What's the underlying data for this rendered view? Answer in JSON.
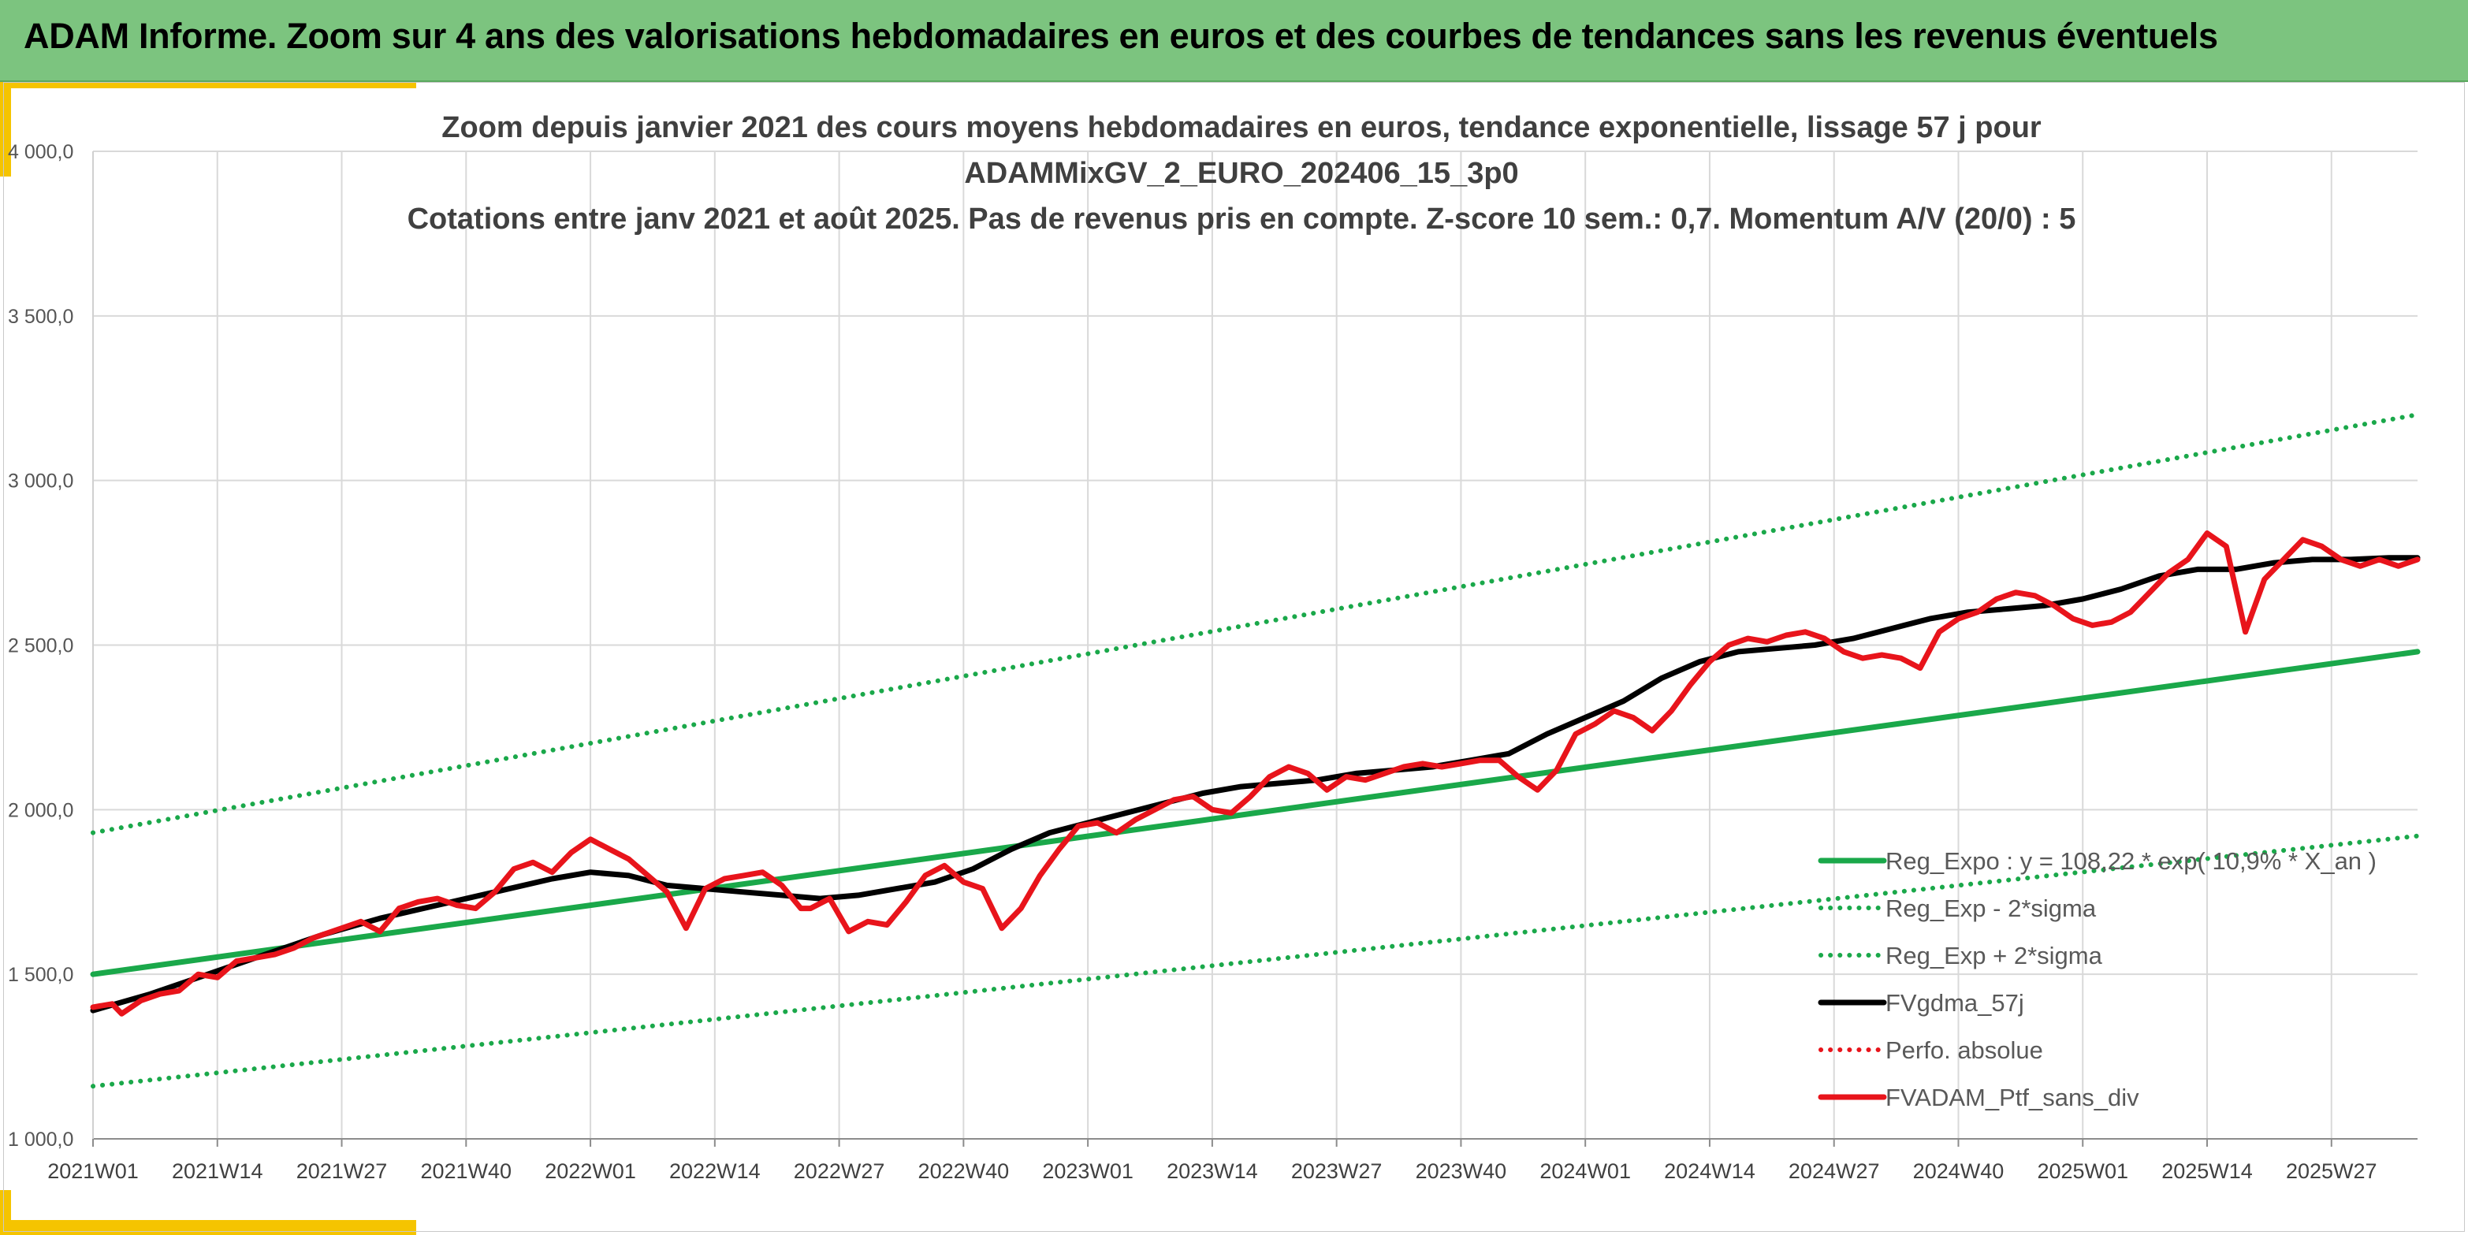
{
  "banner": {
    "title": "ADAM Informe. Zoom sur 4 ans des valorisations hebdomadaires en euros et des courbes de tendances sans les revenus éventuels"
  },
  "colors": {
    "banner_bg": "#7cc47f",
    "trend_green": "#1aa84a",
    "sigma_green": "#1aa84a",
    "gdma_black": "#000000",
    "ptf_red": "#e8141b",
    "accent_yellow": "#f5c400"
  },
  "chart_data": {
    "type": "line",
    "title_lines": [
      "Zoom depuis janvier 2021 des cours moyens hebdomadaires en euros, tendance exponentielle, lissage 57 j pour",
      "ADAMMixGV_2_EURO_202406_15_3p0",
      "Cotations entre janv 2021 et août 2025. Pas de revenus pris en compte. Z-score 10 sem.: 0,7. Momentum A/V (20/0) : 5"
    ],
    "ylim": [
      1000,
      4000
    ],
    "yticks": [
      "1 000,0",
      "1 500,0",
      "2 000,0",
      "2 500,0",
      "3 000,0",
      "3 500,0",
      "4 000,0"
    ],
    "ytick_values": [
      1000,
      1500,
      2000,
      2500,
      3000,
      3500,
      4000
    ],
    "xlim": [
      0,
      243
    ],
    "xtick_labels": [
      "2021W01",
      "2021W14",
      "2021W27",
      "2021W40",
      "2022W01",
      "2022W14",
      "2022W27",
      "2022W40",
      "2023W01",
      "2023W14",
      "2023W27",
      "2023W40",
      "2024W01",
      "2024W14",
      "2024W27",
      "2024W40",
      "2025W01",
      "2025W14",
      "2025W27"
    ],
    "xtick_positions": [
      0,
      13,
      26,
      39,
      52,
      65,
      78,
      91,
      104,
      117,
      130,
      143,
      156,
      169,
      182,
      195,
      208,
      221,
      234
    ],
    "grid": true,
    "legend_position": "bottom-right",
    "series": [
      {
        "name": "Reg_Expo : y = 108,22 * exp( 10,9% * X_an )",
        "style": "solid",
        "color": "#1aa84a",
        "x": [
          0,
          243
        ],
        "y": [
          1500,
          2480
        ]
      },
      {
        "name": "Reg_Exp - 2*sigma",
        "style": "dotted",
        "color": "#1aa84a",
        "x": [
          0,
          243
        ],
        "y": [
          1160,
          1920
        ]
      },
      {
        "name": "Reg_Exp + 2*sigma",
        "style": "dotted",
        "color": "#1aa84a",
        "x": [
          0,
          243
        ],
        "y": [
          1930,
          3200
        ]
      },
      {
        "name": "FVgdma_57j",
        "style": "solid",
        "color": "#000000",
        "x": [
          0,
          6,
          12,
          18,
          24,
          30,
          36,
          42,
          48,
          52,
          56,
          60,
          64,
          68,
          72,
          76,
          80,
          84,
          88,
          92,
          96,
          100,
          104,
          108,
          112,
          116,
          120,
          124,
          128,
          132,
          136,
          140,
          144,
          148,
          152,
          156,
          160,
          164,
          168,
          172,
          176,
          180,
          184,
          188,
          192,
          196,
          200,
          204,
          208,
          212,
          216,
          220,
          224,
          228,
          232,
          236,
          240,
          243
        ],
        "y": [
          1390,
          1440,
          1500,
          1560,
          1620,
          1670,
          1710,
          1750,
          1790,
          1810,
          1800,
          1770,
          1760,
          1750,
          1740,
          1730,
          1740,
          1760,
          1780,
          1820,
          1880,
          1930,
          1960,
          1990,
          2020,
          2050,
          2070,
          2080,
          2090,
          2110,
          2120,
          2130,
          2150,
          2170,
          2230,
          2280,
          2330,
          2400,
          2450,
          2480,
          2490,
          2500,
          2520,
          2550,
          2580,
          2600,
          2610,
          2620,
          2640,
          2670,
          2710,
          2730,
          2730,
          2750,
          2760,
          2760,
          2765,
          2765
        ]
      },
      {
        "name": "Perfo. absolue",
        "style": "dotted",
        "color": "#e8141b",
        "x": [],
        "y": []
      },
      {
        "name": "FVADAM_Ptf_sans_div",
        "style": "solid",
        "color": "#e8141b",
        "x": [
          0,
          2,
          3,
          5,
          7,
          9,
          11,
          13,
          15,
          17,
          19,
          21,
          23,
          26,
          28,
          30,
          32,
          34,
          36,
          38,
          40,
          42,
          44,
          46,
          48,
          50,
          52,
          54,
          56,
          58,
          60,
          62,
          64,
          66,
          68,
          70,
          72,
          74,
          75,
          77,
          79,
          81,
          83,
          85,
          87,
          89,
          91,
          93,
          95,
          97,
          99,
          101,
          103,
          105,
          107,
          109,
          111,
          113,
          115,
          117,
          119,
          121,
          123,
          125,
          127,
          129,
          131,
          133,
          135,
          137,
          139,
          141,
          143,
          145,
          147,
          149,
          151,
          153,
          155,
          157,
          159,
          161,
          163,
          165,
          167,
          169,
          171,
          173,
          175,
          177,
          179,
          181,
          183,
          185,
          187,
          189,
          191,
          193,
          195,
          197,
          199,
          201,
          203,
          205,
          207,
          209,
          211,
          213,
          215,
          217,
          219,
          221,
          223,
          225,
          227,
          229,
          231,
          233,
          235,
          237,
          239,
          241,
          243
        ],
        "y": [
          1400,
          1410,
          1380,
          1420,
          1440,
          1450,
          1500,
          1490,
          1540,
          1550,
          1560,
          1580,
          1610,
          1640,
          1660,
          1630,
          1700,
          1720,
          1730,
          1710,
          1700,
          1750,
          1820,
          1840,
          1810,
          1870,
          1910,
          1880,
          1850,
          1800,
          1750,
          1640,
          1760,
          1790,
          1800,
          1810,
          1770,
          1700,
          1700,
          1730,
          1630,
          1660,
          1650,
          1720,
          1800,
          1830,
          1780,
          1760,
          1640,
          1700,
          1800,
          1880,
          1950,
          1960,
          1930,
          1970,
          2000,
          2030,
          2040,
          2000,
          1990,
          2040,
          2100,
          2130,
          2110,
          2060,
          2100,
          2090,
          2110,
          2130,
          2140,
          2130,
          2140,
          2150,
          2150,
          2100,
          2060,
          2120,
          2230,
          2260,
          2300,
          2280,
          2240,
          2300,
          2380,
          2450,
          2500,
          2520,
          2510,
          2530,
          2540,
          2520,
          2480,
          2460,
          2470,
          2460,
          2430,
          2540,
          2580,
          2600,
          2640,
          2660,
          2650,
          2620,
          2580,
          2560,
          2570,
          2600,
          2660,
          2720,
          2760,
          2840,
          2800,
          2540,
          2700,
          2760,
          2820,
          2800,
          2760,
          2740,
          2760,
          2740,
          2760
        ]
      }
    ]
  }
}
